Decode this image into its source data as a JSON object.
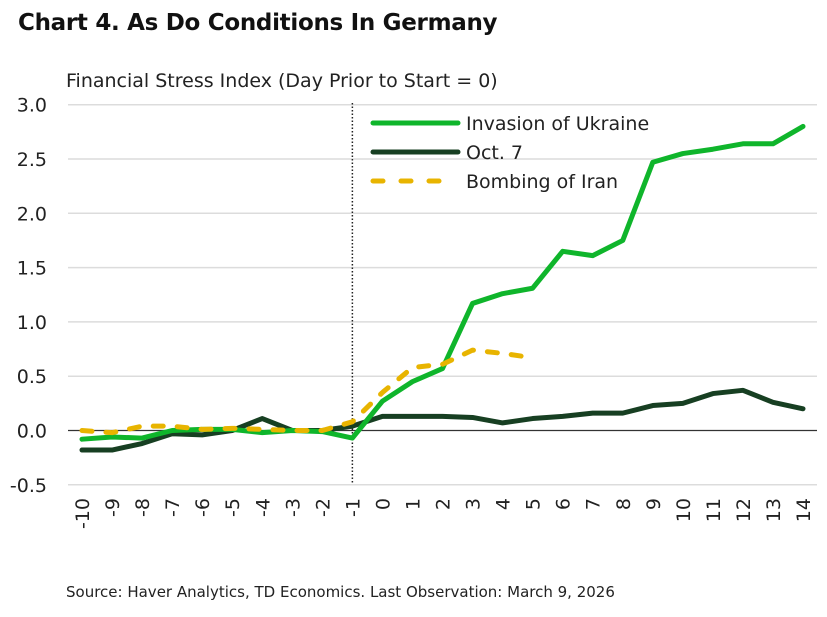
{
  "chart_data": {
    "type": "line",
    "title": "Chart 4. As Do Conditions In Germany",
    "ylabel": "Financial Stress Index (Day Prior to Start = 0)",
    "xlabel": "",
    "source": "Source: Haver Analytics, TD Economics. Last Observation: March 9, 2026",
    "x": [
      -10,
      -9,
      -8,
      -7,
      -6,
      -5,
      -4,
      -3,
      -2,
      -1,
      0,
      1,
      2,
      3,
      4,
      5,
      6,
      7,
      8,
      9,
      10,
      11,
      12,
      13,
      14
    ],
    "ylim": [
      -0.5,
      3.0
    ],
    "yticks": [
      "3.0",
      "2.5",
      "2.0",
      "1.5",
      "1.0",
      "0.5",
      "0.0",
      "-0.5"
    ],
    "grid": true,
    "event_marker_x": -1,
    "legend_position": "top-right",
    "series": [
      {
        "name": "Invasion of Ukraine",
        "color": "#0fb52b",
        "style": "solid",
        "values": [
          -0.08,
          -0.06,
          -0.07,
          0.0,
          0.01,
          0.01,
          -0.02,
          0.0,
          -0.01,
          -0.07,
          0.27,
          0.45,
          0.57,
          1.17,
          1.26,
          1.31,
          1.65,
          1.61,
          1.75,
          2.47,
          2.55,
          2.59,
          2.64,
          2.64,
          2.8
        ]
      },
      {
        "name": "Oct. 7",
        "color": "#173f22",
        "style": "solid",
        "values": [
          -0.18,
          -0.18,
          -0.12,
          -0.03,
          -0.04,
          0.0,
          0.11,
          0.0,
          0.0,
          0.04,
          0.13,
          0.13,
          0.13,
          0.12,
          0.07,
          0.11,
          0.13,
          0.16,
          0.16,
          0.23,
          0.25,
          0.34,
          0.37,
          0.26,
          0.2
        ]
      },
      {
        "name": "Bombing of Iran",
        "color": "#e8b400",
        "style": "dashed",
        "values": [
          0.0,
          -0.02,
          0.04,
          0.04,
          0.01,
          0.02,
          0.01,
          0.0,
          0.0,
          0.08,
          0.35,
          0.58,
          0.61,
          0.74,
          0.71,
          0.67,
          null,
          null,
          null,
          null,
          null,
          null,
          null,
          null,
          null
        ]
      }
    ]
  }
}
